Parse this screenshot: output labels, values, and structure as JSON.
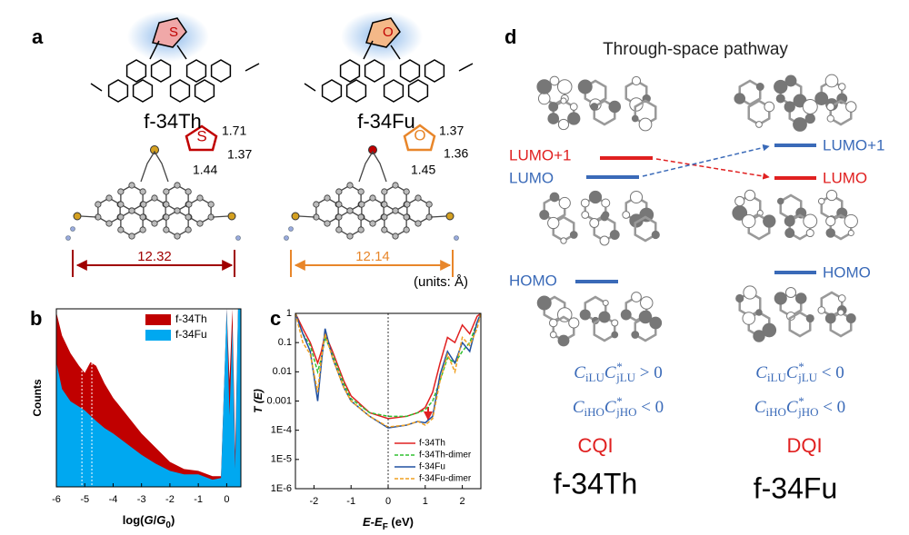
{
  "panel_a": {
    "label": "a",
    "left": {
      "name": "f-34Th",
      "atom": "S",
      "ring_atom": "S",
      "bond1": "1.71",
      "bond2": "1.37",
      "bond3": "1.44",
      "distance": "12.32"
    },
    "right": {
      "name": "f-34Fu",
      "atom": "O",
      "ring_atom": "O",
      "bond1": "1.37",
      "bond2": "1.36",
      "bond3": "1.45",
      "distance": "12.14"
    },
    "units": "(units: Å)"
  },
  "panel_d": {
    "label": "d",
    "title": "Through-space pathway",
    "left": {
      "lumo1": "LUMO+1",
      "lumo": "LUMO",
      "homo": "HOMO",
      "f1": {
        "c1": "C",
        "s1": "iLU",
        "c2": "C",
        "p2": "*",
        "s2": "jLU",
        "rel": " > 0"
      },
      "f2": {
        "c1": "C",
        "s1": "iHO",
        "c2": "C",
        "p2": "*",
        "s2": "jHO",
        "rel": " < 0"
      },
      "qi": "CQI",
      "name": "f-34Th"
    },
    "right": {
      "lumo1": "LUMO+1",
      "lumo": "LUMO",
      "homo": "HOMO",
      "f1": {
        "c1": "C",
        "s1": "iLU",
        "c2": "C",
        "p2": "*",
        "s2": "jLU",
        "rel": " < 0"
      },
      "f2": {
        "c1": "C",
        "s1": "iHO",
        "c2": "C",
        "p2": "*",
        "s2": "jHO",
        "rel": " < 0"
      },
      "qi": "DQI",
      "name": "f-34Fu"
    }
  },
  "chart_data": [
    {
      "type": "area",
      "panel": "b",
      "x_label": {
        "pre": "log(",
        "g": "G",
        "mid": "/",
        "g0": "G",
        "sub": "0",
        "post": ")"
      },
      "y_label": "Counts",
      "x": [
        -6,
        -5.8,
        -5.5,
        -5.2,
        -5,
        -4.8,
        -4.6,
        -4.3,
        -4,
        -3.5,
        -3,
        -2.5,
        -2,
        -1.5,
        -1,
        -0.5,
        -0.2,
        0,
        0.1,
        0.2,
        0.3,
        0.4,
        0.5
      ],
      "series": [
        {
          "name": "f-34Th",
          "color": "#c00000",
          "values": [
            98,
            85,
            75,
            68,
            64,
            70,
            68,
            58,
            50,
            40,
            30,
            22,
            14,
            10,
            9,
            6,
            6,
            100,
            60,
            100,
            20,
            100,
            100
          ]
        },
        {
          "name": "f-34Fu",
          "color": "#00a8f0",
          "values": [
            70,
            55,
            48,
            45,
            43,
            40,
            37,
            33,
            30,
            24,
            18,
            13,
            9,
            7,
            7,
            4,
            5,
            100,
            40,
            90,
            10,
            100,
            100
          ]
        }
      ],
      "vlines": [
        -5.1,
        -4.75
      ],
      "xlim": [
        -6,
        0.5
      ],
      "ylim": [
        0,
        100
      ],
      "xticks": [
        -6,
        -5,
        -4,
        -3,
        -2,
        -1,
        0
      ],
      "legend": "upper right"
    },
    {
      "type": "line",
      "panel": "c",
      "log_y": true,
      "x_label": {
        "pre": "E-E",
        "sub": "F",
        "post": " (eV)"
      },
      "y_label": "T (E)",
      "x": [
        -2.5,
        -2.3,
        -2.1,
        -1.9,
        -1.8,
        -1.7,
        -1.5,
        -1.2,
        -1,
        -0.5,
        0,
        0.5,
        0.8,
        1,
        1.2,
        1.4,
        1.6,
        1.8,
        2,
        2.2,
        2.4,
        2.5
      ],
      "series": [
        {
          "name": "f-34Th",
          "color": "#e02020",
          "dash": false,
          "values": [
            1,
            0.3,
            0.1,
            0.02,
            0.05,
            0.2,
            0.05,
            0.005,
            0.0015,
            0.0004,
            0.00025,
            0.0003,
            0.0004,
            0.0006,
            0.002,
            0.02,
            0.15,
            0.1,
            0.4,
            0.2,
            0.8,
            1
          ]
        },
        {
          "name": "f-34Th-dimer",
          "color": "#30c030",
          "dash": true,
          "values": [
            1,
            0.2,
            0.08,
            0.01,
            0.03,
            0.15,
            0.04,
            0.004,
            0.0012,
            0.0004,
            0.0003,
            0.0003,
            0.0004,
            0.0005,
            0.001,
            0.005,
            0.03,
            0.02,
            0.05,
            0.1,
            0.5,
            1
          ]
        },
        {
          "name": "f-34Fu",
          "color": "#2050a0",
          "dash": false,
          "values": [
            1,
            0.2,
            0.05,
            0.001,
            0.02,
            0.3,
            0.03,
            0.003,
            0.001,
            0.0003,
            0.00012,
            0.00015,
            0.0002,
            0.00018,
            0.0003,
            0.008,
            0.05,
            0.02,
            0.1,
            0.05,
            0.5,
            1
          ]
        },
        {
          "name": "f-34Fu-dimer",
          "color": "#f0a020",
          "dash": true,
          "values": [
            1,
            0.1,
            0.04,
            0.002,
            0.03,
            0.2,
            0.03,
            0.003,
            0.001,
            0.0003,
            0.00013,
            0.00015,
            0.0002,
            0.00015,
            0.00025,
            0.005,
            0.04,
            0.01,
            0.15,
            0.08,
            0.3,
            1
          ]
        }
      ],
      "vlines": [
        0
      ],
      "xlim": [
        -2.5,
        2.5
      ],
      "ylim": [
        1e-06,
        1
      ],
      "xticks": [
        -2,
        -1,
        0,
        1,
        2
      ],
      "yticks": [
        1,
        0.1,
        0.01,
        0.001,
        {
          "value": 0.0001,
          "label": "1E-4"
        },
        {
          "value": 1e-05,
          "label": "1E-5"
        },
        {
          "value": 1e-06,
          "label": "1E-6"
        }
      ],
      "legend": "lower right"
    }
  ]
}
